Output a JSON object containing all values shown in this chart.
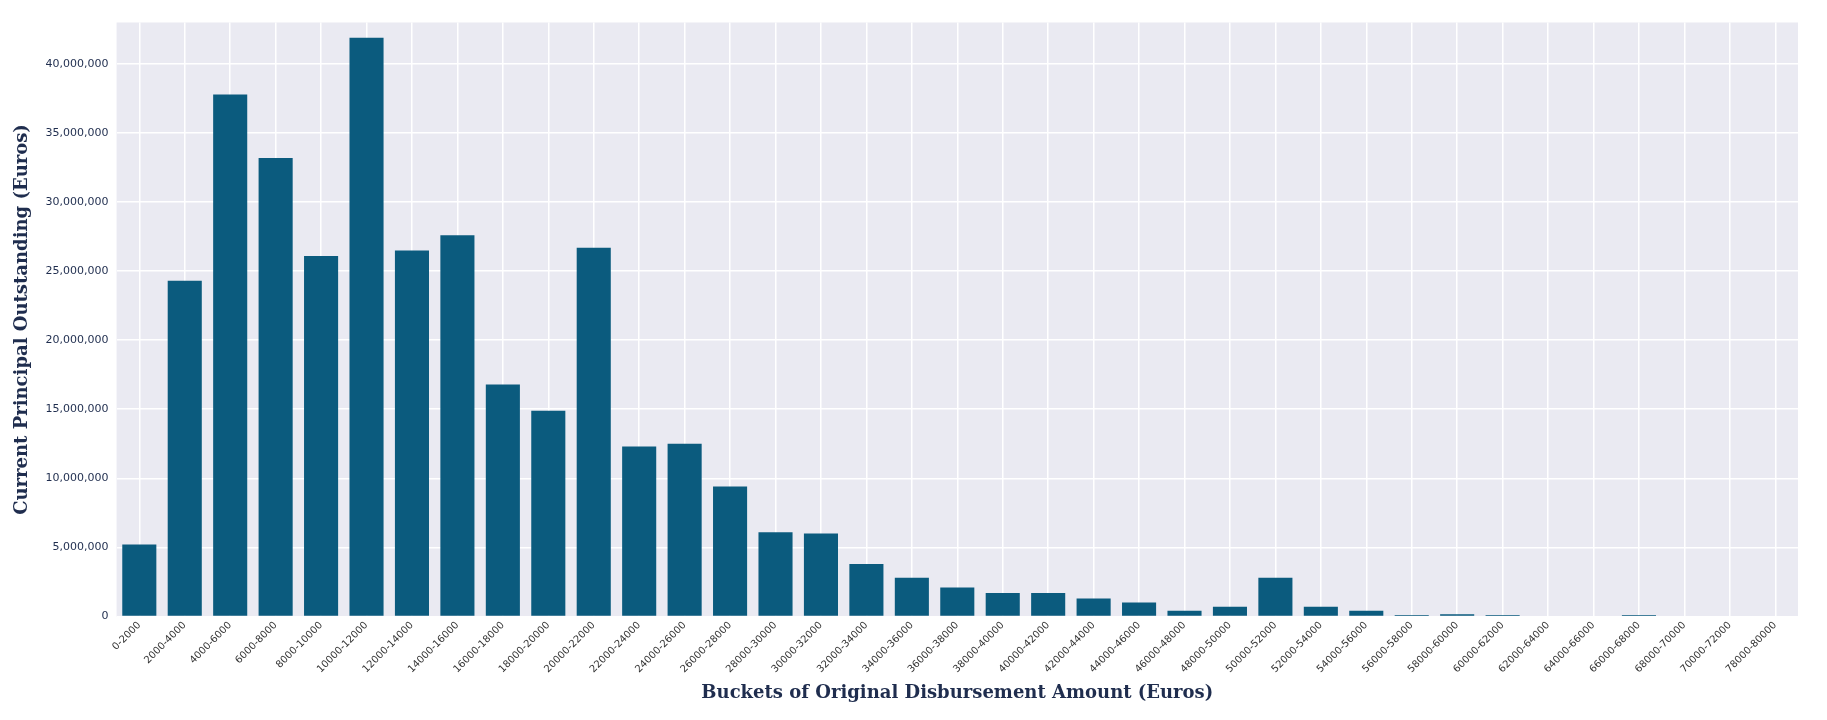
{
  "chart_data": {
    "type": "bar",
    "xlabel": "Buckets of Original Disbursement Amount (Euros)",
    "ylabel": "Current Principal Outstanding (Euros)",
    "categories": [
      "0-2000",
      "2000-4000",
      "4000-6000",
      "6000-8000",
      "8000-10000",
      "10000-12000",
      "12000-14000",
      "14000-16000",
      "16000-18000",
      "18000-20000",
      "20000-22000",
      "22000-24000",
      "24000-26000",
      "26000-28000",
      "28000-30000",
      "30000-32000",
      "32000-34000",
      "34000-36000",
      "36000-38000",
      "38000-40000",
      "40000-42000",
      "42000-44000",
      "44000-46000",
      "46000-48000",
      "48000-50000",
      "50000-52000",
      "52000-54000",
      "54000-56000",
      "56000-58000",
      "58000-60000",
      "60000-62000",
      "62000-64000",
      "64000-66000",
      "66000-68000",
      "68000-70000",
      "70000-72000",
      "78000-80000"
    ],
    "values": [
      5200000,
      24300000,
      37800000,
      33200000,
      26100000,
      41900000,
      26500000,
      27600000,
      16800000,
      14900000,
      26700000,
      12300000,
      12500000,
      9400000,
      6100000,
      6000000,
      3800000,
      2800000,
      2100000,
      1700000,
      1700000,
      1300000,
      1000000,
      400000,
      700000,
      2800000,
      700000,
      400000,
      100000,
      150000,
      100000,
      50000,
      0,
      100000,
      0,
      0,
      0
    ],
    "color": "#0b5b7e",
    "ylim": [
      0,
      43000000
    ],
    "yticks": [
      0,
      {
        "value": 5000000,
        "label": "5,000,000"
      },
      {
        "value": 10000000,
        "label": "10,000,000"
      },
      {
        "value": 15000000,
        "label": "15,000,000"
      },
      {
        "value": 20000000,
        "label": "20,000,000"
      },
      {
        "value": 25000000,
        "label": "25,000,000"
      },
      {
        "value": 30000000,
        "label": "30,000,000"
      },
      {
        "value": 35000000,
        "label": "35,000,000"
      },
      {
        "value": 40000000,
        "label": "40,000,000"
      }
    ],
    "grid": true
  }
}
